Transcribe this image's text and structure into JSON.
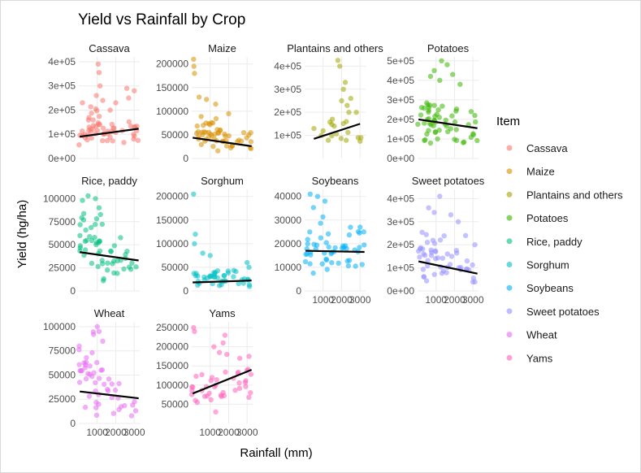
{
  "chart_data": {
    "type": "scatter",
    "title": "Yield vs Rainfall by Crop",
    "xlabel": "Rainfall (mm)",
    "ylabel": "Yield (hg/ha)",
    "x_ticks": [
      {
        "value": 1000,
        "label": "1000"
      },
      {
        "value": 2000,
        "label": "2000"
      },
      {
        "value": 3000,
        "label": "3000"
      }
    ],
    "xlim": [
      0,
      3300
    ],
    "grid": true,
    "legend": {
      "title": "Item",
      "position": "right",
      "entries": [
        {
          "label": "Cassava",
          "color": "#F8766D"
        },
        {
          "label": "Maize",
          "color": "#D89000"
        },
        {
          "label": "Plantains and others",
          "color": "#A3A500"
        },
        {
          "label": "Potatoes",
          "color": "#39B600"
        },
        {
          "label": "Rice, paddy",
          "color": "#00BF7D"
        },
        {
          "label": "Sorghum",
          "color": "#00BFC4"
        },
        {
          "label": "Soybeans",
          "color": "#00B0F6"
        },
        {
          "label": "Sweet potatoes",
          "color": "#9590FF"
        },
        {
          "label": "Wheat",
          "color": "#E76BF3"
        },
        {
          "label": "Yams",
          "color": "#FF62BC"
        }
      ]
    },
    "panels": [
      {
        "strip": "Cassava",
        "color": "#F8766D",
        "ylim": [
          0,
          420000
        ],
        "y_ticks": [
          {
            "value": 0,
            "label": "0e+00"
          },
          {
            "value": 100000,
            "label": "1e+05"
          },
          {
            "value": 200000,
            "label": "2e+05"
          },
          {
            "value": 300000,
            "label": "3e+05"
          },
          {
            "value": 400000,
            "label": "4e+05"
          }
        ],
        "trend": [
          [
            51,
            90000
          ],
          [
            3240,
            123000
          ]
        ],
        "clusters": [
          [
            500,
            1400,
            30000,
            220000,
            26
          ],
          [
            1500,
            2100,
            50000,
            170000,
            10
          ],
          [
            2300,
            3240,
            50000,
            190000,
            12
          ],
          [
            0,
            500,
            50000,
            160000,
            8
          ]
        ],
        "points": [
          [
            1050,
            390000
          ],
          [
            1100,
            355000
          ],
          [
            1150,
            300000
          ],
          [
            950,
            260000
          ],
          [
            1300,
            240000
          ],
          [
            2600,
            290000
          ],
          [
            2700,
            250000
          ],
          [
            3000,
            280000
          ],
          [
            200,
            230000
          ],
          [
            1700,
            200000
          ],
          [
            2000,
            230000
          ]
        ]
      },
      {
        "strip": "Maize",
        "color": "#D89000",
        "ylim": [
          0,
          215000
        ],
        "y_ticks": [
          {
            "value": 0,
            "label": "0"
          },
          {
            "value": 50000,
            "label": "50000"
          },
          {
            "value": 100000,
            "label": "100000"
          },
          {
            "value": 150000,
            "label": "150000"
          },
          {
            "value": 200000,
            "label": "200000"
          }
        ],
        "trend": [
          [
            51,
            44000
          ],
          [
            3240,
            26000
          ]
        ],
        "clusters": [
          [
            200,
            1600,
            10000,
            100000,
            34
          ],
          [
            1600,
            2600,
            10000,
            70000,
            12
          ],
          [
            2600,
            3240,
            10000,
            60000,
            8
          ]
        ],
        "points": [
          [
            100,
            210000
          ],
          [
            120,
            195000
          ],
          [
            150,
            180000
          ],
          [
            400,
            130000
          ],
          [
            800,
            125000
          ],
          [
            1300,
            115000
          ],
          [
            2000,
            95000
          ]
        ]
      },
      {
        "strip": "Plantains and others",
        "color": "#A3A500",
        "ylim": [
          0,
          440000
        ],
        "y_ticks": [
          {
            "value": 100000,
            "label": "1e+05"
          },
          {
            "value": 200000,
            "label": "2e+05"
          },
          {
            "value": 300000,
            "label": "3e+05"
          },
          {
            "value": 400000,
            "label": "4e+05"
          }
        ],
        "trend": [
          [
            500,
            85000
          ],
          [
            3000,
            150000
          ]
        ],
        "clusters": [
          [
            1200,
            2400,
            40000,
            200000,
            10
          ]
        ],
        "points": [
          [
            1800,
            425000
          ],
          [
            1900,
            400000
          ],
          [
            2200,
            330000
          ],
          [
            2100,
            300000
          ],
          [
            2500,
            260000
          ],
          [
            2300,
            230000
          ],
          [
            2000,
            250000
          ],
          [
            2400,
            200000
          ],
          [
            2800,
            200000
          ],
          [
            1500,
            170000
          ],
          [
            1600,
            140000
          ],
          [
            1000,
            120000
          ],
          [
            500,
            130000
          ],
          [
            900,
            100000
          ],
          [
            2900,
            90000
          ],
          [
            3000,
            75000
          ],
          [
            3050,
            90000
          ]
        ]
      },
      {
        "strip": "Potatoes",
        "color": "#39B600",
        "ylim": [
          0,
          520000
        ],
        "y_ticks": [
          {
            "value": 0,
            "label": "0e+00"
          },
          {
            "value": 100000,
            "label": "1e+05"
          },
          {
            "value": 200000,
            "label": "2e+05"
          },
          {
            "value": 300000,
            "label": "3e+05"
          },
          {
            "value": 400000,
            "label": "4e+05"
          },
          {
            "value": 500000,
            "label": "5e+05"
          }
        ],
        "trend": [
          [
            51,
            200000
          ],
          [
            3240,
            155000
          ]
        ],
        "clusters": [
          [
            0,
            1400,
            50000,
            350000,
            34
          ],
          [
            1400,
            2400,
            50000,
            300000,
            12
          ],
          [
            2400,
            3240,
            40000,
            200000,
            8
          ]
        ],
        "points": [
          [
            1300,
            500000
          ],
          [
            1600,
            480000
          ],
          [
            900,
            450000
          ],
          [
            1900,
            430000
          ],
          [
            700,
            420000
          ],
          [
            2300,
            380000
          ],
          [
            1200,
            400000
          ],
          [
            2900,
            240000
          ],
          [
            3100,
            220000
          ]
        ]
      },
      {
        "strip": "Rice, paddy",
        "color": "#00BF7D",
        "ylim": [
          0,
          110000
        ],
        "y_ticks": [
          {
            "value": 0,
            "label": "0"
          },
          {
            "value": 25000,
            "label": "25000"
          },
          {
            "value": 50000,
            "label": "50000"
          },
          {
            "value": 75000,
            "label": "75000"
          },
          {
            "value": 100000,
            "label": "100000"
          }
        ],
        "trend": [
          [
            51,
            42000
          ],
          [
            3240,
            33000
          ]
        ],
        "clusters": [
          [
            0,
            1400,
            10000,
            100000,
            34
          ],
          [
            1400,
            2400,
            10000,
            60000,
            12
          ],
          [
            2400,
            3240,
            15000,
            55000,
            8
          ]
        ],
        "points": [
          [
            500,
            103000
          ],
          [
            900,
            100000
          ],
          [
            200,
            98000
          ],
          [
            1100,
            90000
          ]
        ]
      },
      {
        "strip": "Sorghum",
        "color": "#00BFC4",
        "ylim": [
          0,
          215000
        ],
        "y_ticks": [
          {
            "value": 0,
            "label": "0"
          },
          {
            "value": 50000,
            "label": "50000"
          },
          {
            "value": 100000,
            "label": "100000"
          },
          {
            "value": 150000,
            "label": "150000"
          },
          {
            "value": 200000,
            "label": "200000"
          }
        ],
        "trend": [
          [
            51,
            18000
          ],
          [
            3240,
            22000
          ]
        ],
        "clusters": [
          [
            0,
            2400,
            3000,
            50000,
            34
          ],
          [
            2400,
            3240,
            5000,
            40000,
            8
          ]
        ],
        "points": [
          [
            100,
            205000
          ],
          [
            200,
            120000
          ],
          [
            150,
            100000
          ],
          [
            600,
            80000
          ],
          [
            1000,
            75000
          ],
          [
            3000,
            60000
          ],
          [
            3100,
            50000
          ]
        ]
      },
      {
        "strip": "Soybeans",
        "color": "#00B0F6",
        "ylim": [
          0,
          43000
        ],
        "y_ticks": [
          {
            "value": 0,
            "label": "0"
          },
          {
            "value": 10000,
            "label": "10000"
          },
          {
            "value": 20000,
            "label": "20000"
          },
          {
            "value": 30000,
            "label": "30000"
          },
          {
            "value": 40000,
            "label": "40000"
          }
        ],
        "trend": [
          [
            51,
            17000
          ],
          [
            3240,
            16500
          ]
        ],
        "clusters": [
          [
            0,
            1600,
            5000,
            38000,
            30
          ],
          [
            1600,
            2600,
            8000,
            30000,
            12
          ],
          [
            2600,
            3240,
            8000,
            28000,
            8
          ]
        ],
        "points": [
          [
            300,
            41000
          ],
          [
            700,
            40000
          ],
          [
            1100,
            38000
          ],
          [
            3000,
            27000
          ],
          [
            3200,
            25000
          ]
        ]
      },
      {
        "strip": "Sweet potatoes",
        "color": "#9590FF",
        "ylim": [
          0,
          440000
        ],
        "y_ticks": [
          {
            "value": 0,
            "label": "0e+00"
          },
          {
            "value": 100000,
            "label": "1e+05"
          },
          {
            "value": 200000,
            "label": "2e+05"
          },
          {
            "value": 300000,
            "label": "3e+05"
          },
          {
            "value": 400000,
            "label": "4e+05"
          }
        ],
        "trend": [
          [
            51,
            128000
          ],
          [
            3240,
            75000
          ]
        ],
        "clusters": [
          [
            0,
            1400,
            20000,
            300000,
            30
          ],
          [
            1400,
            2600,
            30000,
            250000,
            12
          ],
          [
            2600,
            3240,
            20000,
            150000,
            8
          ]
        ],
        "points": [
          [
            1200,
            410000
          ],
          [
            600,
            360000
          ],
          [
            900,
            340000
          ],
          [
            1800,
            330000
          ],
          [
            2200,
            300000
          ],
          [
            2600,
            240000
          ],
          [
            3100,
            200000
          ]
        ]
      },
      {
        "strip": "Wheat",
        "color": "#E76BF3",
        "ylim": [
          0,
          105000
        ],
        "y_ticks": [
          {
            "value": 0,
            "label": "0"
          },
          {
            "value": 25000,
            "label": "25000"
          },
          {
            "value": 50000,
            "label": "50000"
          },
          {
            "value": 75000,
            "label": "75000"
          },
          {
            "value": 100000,
            "label": "100000"
          }
        ],
        "trend": [
          [
            51,
            33000
          ],
          [
            3240,
            26000
          ]
        ],
        "clusters": [
          [
            0,
            1400,
            5000,
            100000,
            34
          ],
          [
            1400,
            2200,
            5000,
            50000,
            10
          ],
          [
            2200,
            3240,
            5000,
            40000,
            6
          ]
        ],
        "points": [
          [
            1000,
            100000
          ],
          [
            1100,
            95000
          ],
          [
            800,
            92000
          ],
          [
            1300,
            85000
          ]
        ]
      },
      {
        "strip": "Yams",
        "color": "#FF62BC",
        "ylim": [
          0,
          265000
        ],
        "y_ticks": [
          {
            "value": 50000,
            "label": "50000"
          },
          {
            "value": 100000,
            "label": "100000"
          },
          {
            "value": 150000,
            "label": "150000"
          },
          {
            "value": 200000,
            "label": "200000"
          },
          {
            "value": 250000,
            "label": "250000"
          }
        ],
        "trend": [
          [
            51,
            78000
          ],
          [
            3240,
            140000
          ]
        ],
        "clusters": [
          [
            0,
            1600,
            40000,
            150000,
            16
          ],
          [
            1600,
            2600,
            60000,
            160000,
            10
          ],
          [
            2900,
            3240,
            60000,
            180000,
            8
          ]
        ],
        "points": [
          [
            100,
            250000
          ],
          [
            150,
            240000
          ],
          [
            1800,
            230000
          ],
          [
            1700,
            210000
          ],
          [
            1200,
            200000
          ],
          [
            1500,
            185000
          ],
          [
            1900,
            180000
          ],
          [
            2600,
            170000
          ],
          [
            3100,
            175000
          ],
          [
            1100,
            120000
          ],
          [
            1300,
            100000
          ],
          [
            200,
            60000
          ],
          [
            300,
            55000
          ],
          [
            1300,
            30000
          ]
        ]
      }
    ]
  }
}
